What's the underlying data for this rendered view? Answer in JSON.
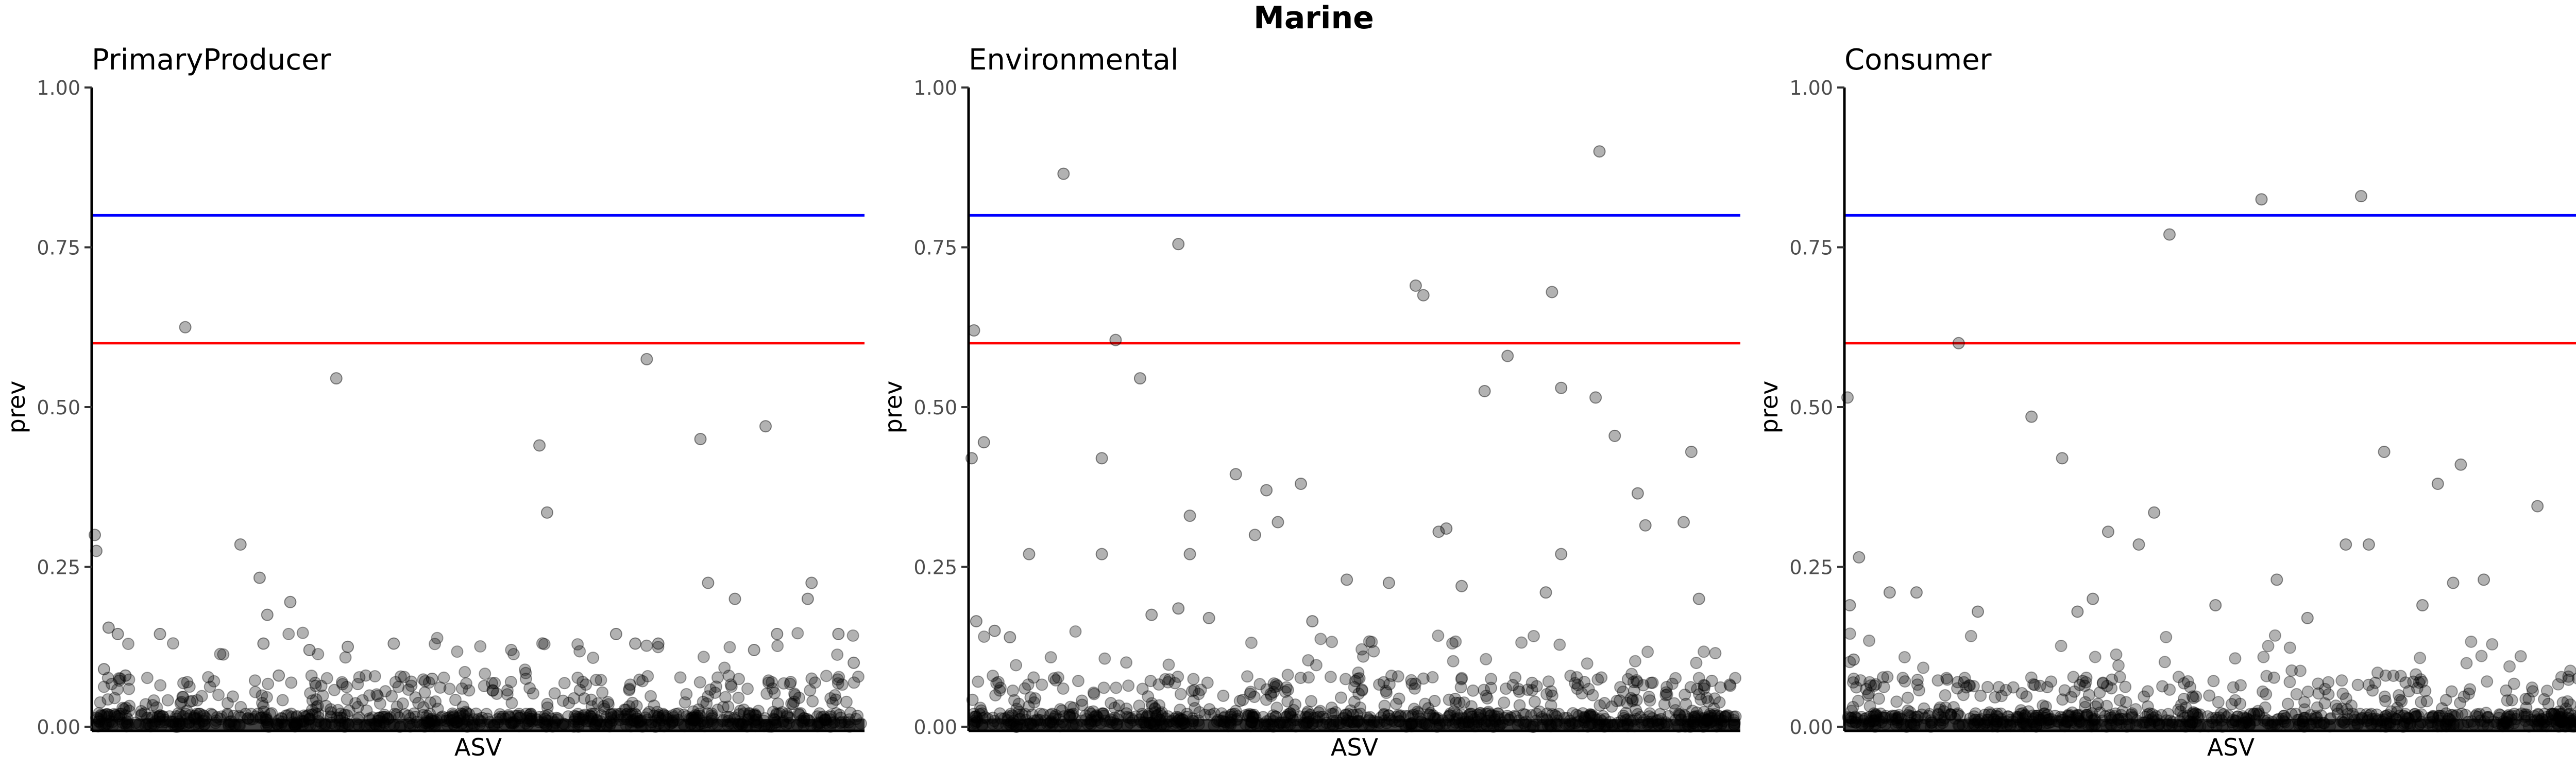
{
  "chart_data": {
    "title": "Marine",
    "type": "scatter",
    "xlabel": "ASV",
    "ylabel": "prev",
    "ylim": [
      0,
      1
    ],
    "yticks": [
      0,
      0.25,
      0.5,
      0.75,
      1
    ],
    "ytick_labels": [
      "0.00",
      "0.25",
      "0.50",
      "0.75",
      "1.00"
    ],
    "reference_lines": [
      {
        "y": 0.8,
        "color": "#0000ff"
      },
      {
        "y": 0.6,
        "color": "#ff0000"
      }
    ],
    "point_color": "#000000",
    "point_opacity": 0.3,
    "grid": false,
    "legend": "none",
    "panels": [
      {
        "name": "PrimaryProducer",
        "points": [
          [
            0.0,
            0.3
          ],
          [
            0.002,
            0.275
          ],
          [
            0.012,
            0.09
          ],
          [
            0.018,
            0.155
          ],
          [
            0.03,
            0.145
          ],
          [
            0.04,
            0.08
          ],
          [
            0.085,
            0.145
          ],
          [
            0.118,
            0.625
          ],
          [
            0.19,
            0.285
          ],
          [
            0.215,
            0.233
          ],
          [
            0.22,
            0.13
          ],
          [
            0.225,
            0.175
          ],
          [
            0.24,
            0.08
          ],
          [
            0.255,
            0.195
          ],
          [
            0.28,
            0.12
          ],
          [
            0.315,
            0.545
          ],
          [
            0.33,
            0.125
          ],
          [
            0.39,
            0.13
          ],
          [
            0.44,
            0.075
          ],
          [
            0.58,
            0.44
          ],
          [
            0.59,
            0.335
          ],
          [
            0.68,
            0.145
          ],
          [
            0.705,
            0.13
          ],
          [
            0.72,
            0.575
          ],
          [
            0.735,
            0.13
          ],
          [
            0.79,
            0.45
          ],
          [
            0.8,
            0.225
          ],
          [
            0.835,
            0.2
          ],
          [
            0.86,
            0.12
          ],
          [
            0.875,
            0.47
          ],
          [
            0.89,
            0.145
          ],
          [
            0.93,
            0.2
          ],
          [
            0.935,
            0.225
          ],
          [
            0.97,
            0.145
          ],
          [
            0.99,
            0.1
          ]
        ]
      },
      {
        "name": "Environmental",
        "points": [
          [
            0.0,
            0.42
          ],
          [
            0.003,
            0.62
          ],
          [
            0.006,
            0.165
          ],
          [
            0.016,
            0.445
          ],
          [
            0.03,
            0.15
          ],
          [
            0.05,
            0.14
          ],
          [
            0.075,
            0.27
          ],
          [
            0.12,
            0.865
          ],
          [
            0.17,
            0.42
          ],
          [
            0.17,
            0.27
          ],
          [
            0.188,
            0.605
          ],
          [
            0.22,
            0.545
          ],
          [
            0.235,
            0.175
          ],
          [
            0.27,
            0.755
          ],
          [
            0.27,
            0.185
          ],
          [
            0.285,
            0.33
          ],
          [
            0.285,
            0.27
          ],
          [
            0.31,
            0.17
          ],
          [
            0.345,
            0.395
          ],
          [
            0.37,
            0.3
          ],
          [
            0.385,
            0.37
          ],
          [
            0.4,
            0.32
          ],
          [
            0.43,
            0.38
          ],
          [
            0.445,
            0.165
          ],
          [
            0.49,
            0.23
          ],
          [
            0.545,
            0.225
          ],
          [
            0.58,
            0.69
          ],
          [
            0.59,
            0.675
          ],
          [
            0.61,
            0.305
          ],
          [
            0.62,
            0.31
          ],
          [
            0.64,
            0.22
          ],
          [
            0.67,
            0.525
          ],
          [
            0.7,
            0.58
          ],
          [
            0.75,
            0.21
          ],
          [
            0.758,
            0.68
          ],
          [
            0.77,
            0.53
          ],
          [
            0.77,
            0.27
          ],
          [
            0.815,
            0.515
          ],
          [
            0.82,
            0.9
          ],
          [
            0.84,
            0.455
          ],
          [
            0.87,
            0.365
          ],
          [
            0.88,
            0.315
          ],
          [
            0.93,
            0.32
          ],
          [
            0.94,
            0.43
          ],
          [
            0.95,
            0.2
          ]
        ]
      },
      {
        "name": "Consumer",
        "points": [
          [
            0.0,
            0.515
          ],
          [
            0.003,
            0.19
          ],
          [
            0.008,
            0.105
          ],
          [
            0.015,
            0.265
          ],
          [
            0.055,
            0.21
          ],
          [
            0.09,
            0.21
          ],
          [
            0.145,
            0.6
          ],
          [
            0.17,
            0.18
          ],
          [
            0.24,
            0.485
          ],
          [
            0.28,
            0.42
          ],
          [
            0.3,
            0.18
          ],
          [
            0.32,
            0.2
          ],
          [
            0.34,
            0.305
          ],
          [
            0.38,
            0.285
          ],
          [
            0.4,
            0.335
          ],
          [
            0.42,
            0.77
          ],
          [
            0.48,
            0.19
          ],
          [
            0.54,
            0.825
          ],
          [
            0.56,
            0.23
          ],
          [
            0.6,
            0.17
          ],
          [
            0.65,
            0.285
          ],
          [
            0.67,
            0.83
          ],
          [
            0.68,
            0.285
          ],
          [
            0.7,
            0.43
          ],
          [
            0.75,
            0.19
          ],
          [
            0.77,
            0.38
          ],
          [
            0.79,
            0.225
          ],
          [
            0.8,
            0.41
          ],
          [
            0.83,
            0.23
          ],
          [
            0.9,
            0.345
          ],
          [
            0.97,
            0.21
          ],
          [
            0.99,
            0.2
          ]
        ]
      }
    ]
  }
}
